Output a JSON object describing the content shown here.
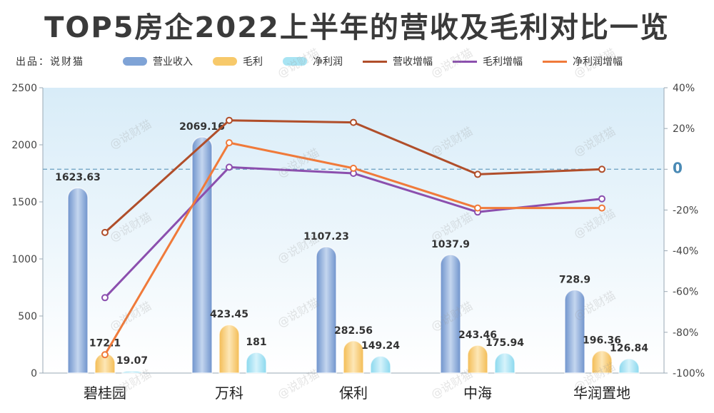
{
  "title": "TOP5房企2022上半年的营收及毛利对比一览",
  "source": "出品：说财猫",
  "watermark": "@说财猫",
  "legend": [
    {
      "name": "营业收入",
      "kind": "bar",
      "color": "#7fa3d6"
    },
    {
      "name": "毛利",
      "kind": "bar",
      "color": "#f7c96a"
    },
    {
      "name": "净利润",
      "kind": "bar",
      "color": "#a8e4f3"
    },
    {
      "name": "营收增幅",
      "kind": "line",
      "color": "#b04e2a"
    },
    {
      "name": "毛利增幅",
      "kind": "line",
      "color": "#8b4fae"
    },
    {
      "name": "净利润增幅",
      "kind": "line",
      "color": "#f07a3a"
    }
  ],
  "chart_data": {
    "type": "bar",
    "categories": [
      "碧桂园",
      "万科",
      "保利",
      "中海",
      "华润置地"
    ],
    "series": [
      {
        "name": "营业收入",
        "type": "bar",
        "axis": "left",
        "values": [
          1623.63,
          2069.16,
          1107.23,
          1037.9,
          728.9
        ],
        "labels": [
          "1623.63",
          "2069.16",
          "1107.23",
          "1037.9",
          "728.9"
        ]
      },
      {
        "name": "毛利",
        "type": "bar",
        "axis": "left",
        "values": [
          172.1,
          423.45,
          282.56,
          243.46,
          196.36
        ],
        "labels": [
          "172.1",
          "423.45",
          "282.56",
          "243.46",
          "196.36"
        ]
      },
      {
        "name": "净利润",
        "type": "bar",
        "axis": "left",
        "values": [
          19.07,
          181,
          149.24,
          175.94,
          126.84
        ],
        "labels": [
          "19.07",
          "181",
          "149.24",
          "175.94",
          "126.84"
        ]
      },
      {
        "name": "营收增幅",
        "type": "line",
        "axis": "right",
        "values": [
          -31,
          24,
          23,
          -2.5,
          0
        ]
      },
      {
        "name": "毛利增幅",
        "type": "line",
        "axis": "right",
        "values": [
          -63,
          1,
          -2,
          -21,
          -14.5
        ]
      },
      {
        "name": "净利润增幅",
        "type": "line",
        "axis": "right",
        "values": [
          -91,
          13,
          0.5,
          -19,
          -19
        ]
      }
    ],
    "ylim_left": [
      0,
      2500
    ],
    "yticks_left": [
      "0",
      "500",
      "1000",
      "1500",
      "2000",
      "2500"
    ],
    "ylim_right": [
      -100,
      40
    ],
    "yticks_right": [
      "-100%",
      "-80%",
      "-60%",
      "-40%",
      "-20%",
      "0",
      "20%",
      "40%"
    ],
    "reference_line": 0,
    "grid": false,
    "legend_position": "top"
  }
}
